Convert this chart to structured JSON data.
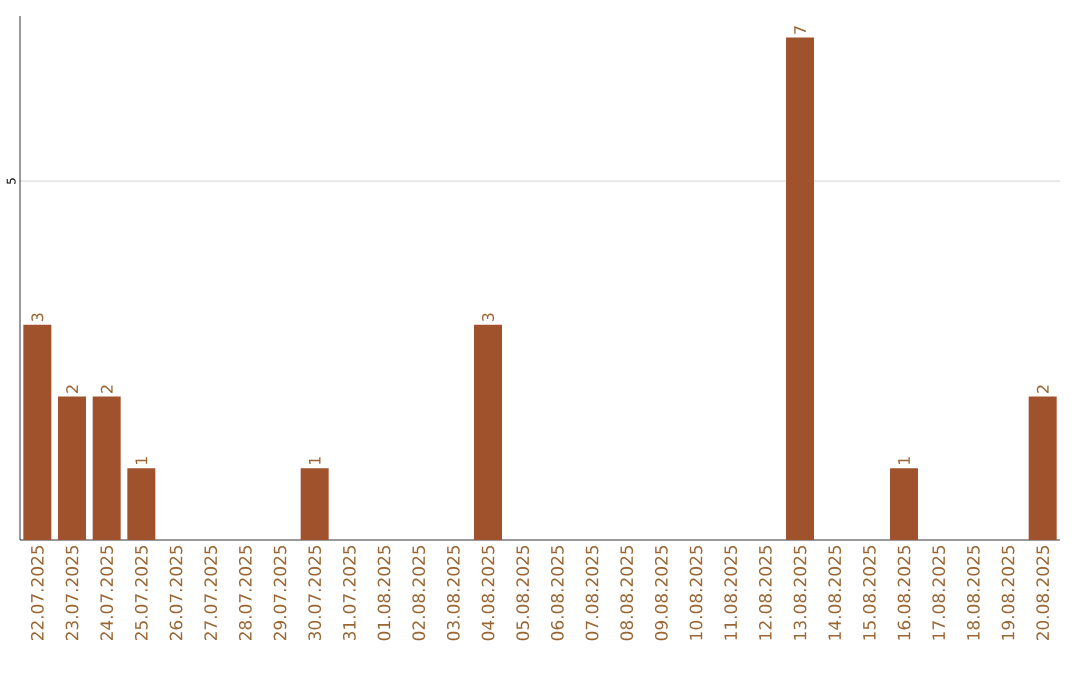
{
  "chart_data": {
    "type": "bar",
    "categories": [
      "22.07.2025",
      "23.07.2025",
      "24.07.2025",
      "25.07.2025",
      "26.07.2025",
      "27.07.2025",
      "28.07.2025",
      "29.07.2025",
      "30.07.2025",
      "31.07.2025",
      "01.08.2025",
      "02.08.2025",
      "03.08.2025",
      "04.08.2025",
      "05.08.2025",
      "06.08.2025",
      "07.08.2025",
      "08.08.2025",
      "09.08.2025",
      "10.08.2025",
      "11.08.2025",
      "12.08.2025",
      "13.08.2025",
      "14.08.2025",
      "15.08.2025",
      "16.08.2025",
      "17.08.2025",
      "18.08.2025",
      "19.08.2025",
      "20.08.2025"
    ],
    "values": [
      3,
      2,
      2,
      1,
      0,
      0,
      0,
      0,
      1,
      0,
      0,
      0,
      0,
      3,
      0,
      0,
      0,
      0,
      0,
      0,
      0,
      0,
      7,
      0,
      0,
      1,
      0,
      0,
      0,
      2
    ],
    "value_labels": [
      "3",
      "2",
      "2",
      "1",
      null,
      null,
      null,
      null,
      "1",
      null,
      null,
      null,
      null,
      "3",
      null,
      null,
      null,
      null,
      null,
      null,
      null,
      null,
      "7",
      null,
      null,
      "1",
      null,
      null,
      null,
      "2"
    ],
    "color": "#a0522d",
    "ylim": [
      0,
      7.3
    ],
    "yticks": [
      5
    ],
    "grid": "y"
  }
}
